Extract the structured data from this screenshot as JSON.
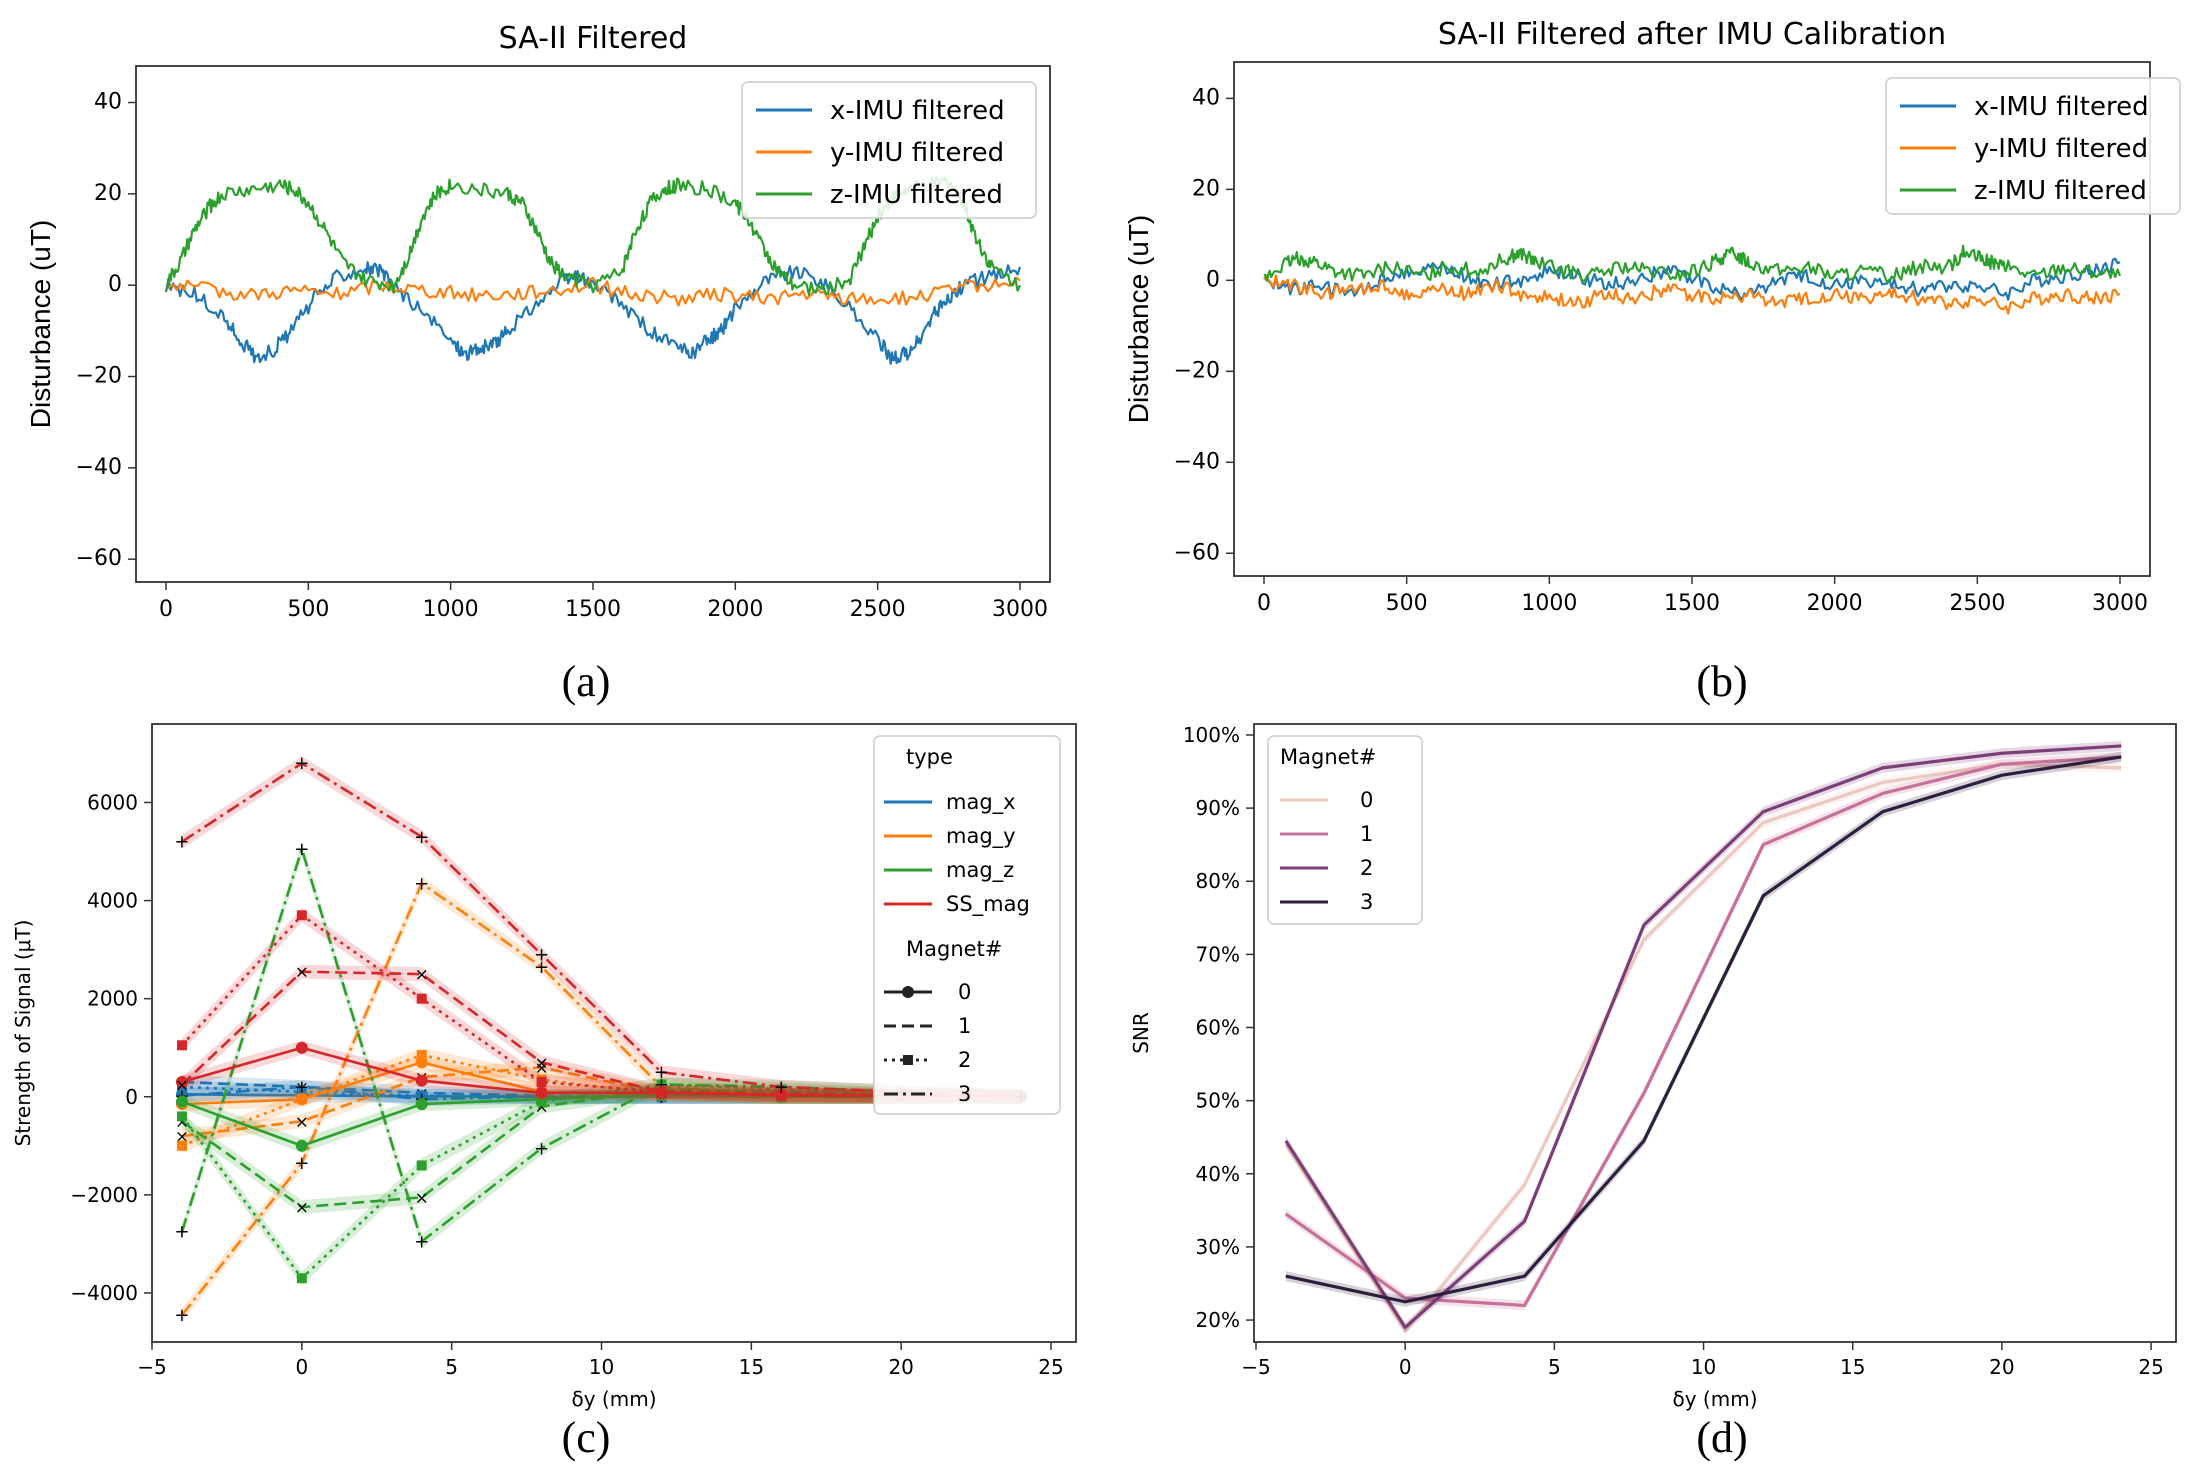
{
  "panels": {
    "a": {
      "caption": "(a)",
      "chart_data": {
        "type": "line",
        "title": "SA-II Filtered",
        "xlabel": "",
        "ylabel": "Disturbance (uT)",
        "xlim": [
          0,
          3000
        ],
        "ylim": [
          -65,
          48
        ],
        "xticks": [
          0,
          500,
          1000,
          1500,
          2000,
          2500,
          3000
        ],
        "yticks": [
          40,
          20,
          0,
          -20,
          -40,
          -60
        ],
        "legend": [
          "x-IMU filtered",
          "y-IMU filtered",
          "z-IMU filtered"
        ],
        "series": [
          {
            "name": "x-IMU filtered",
            "color": "#1f77b4",
            "x": [
              0,
              100,
              200,
              260,
              320,
              380,
              440,
              520,
              600,
              700,
              750,
              800,
              900,
              1000,
              1050,
              1100,
              1150,
              1200,
              1300,
              1400,
              1450,
              1500,
              1600,
              1700,
              1800,
              1850,
              1900,
              1950,
              2000,
              2100,
              2200,
              2300,
              2400,
              2500,
              2550,
              2600,
              2650,
              2700,
              2750,
              2800,
              2900,
              3000
            ],
            "values": [
              0,
              -2,
              -7,
              -12,
              -16,
              -14,
              -10,
              -3,
              2,
              4,
              3,
              0,
              -6,
              -12,
              -15,
              -14,
              -13,
              -10,
              -4,
              1,
              2,
              0,
              -4,
              -10,
              -14,
              -15,
              -12,
              -10,
              -5,
              1,
              3,
              1,
              -5,
              -12,
              -16,
              -15,
              -12,
              -6,
              -3,
              0,
              2,
              4
            ]
          },
          {
            "name": "y-IMU filtered",
            "color": "#ff7f0e",
            "x": [
              0,
              150,
              300,
              450,
              600,
              750,
              900,
              1050,
              1200,
              1350,
              1500,
              1650,
              1800,
              1950,
              2100,
              2250,
              2400,
              2550,
              2700,
              2850,
              3000
            ],
            "values": [
              0,
              -1,
              -2,
              -1,
              -2,
              0,
              -1,
              -2,
              -2,
              -1,
              0,
              -2,
              -3,
              -2,
              -3,
              -2,
              -3,
              -3,
              -2,
              0,
              1
            ]
          },
          {
            "name": "z-IMU filtered",
            "color": "#2ca02c",
            "x": [
              0,
              50,
              100,
              150,
              200,
              300,
              400,
              450,
              500,
              560,
              620,
              700,
              800,
              850,
              900,
              950,
              1000,
              1100,
              1200,
              1250,
              1300,
              1350,
              1400,
              1500,
              1600,
              1650,
              1700,
              1750,
              1800,
              1900,
              2000,
              2050,
              2100,
              2150,
              2200,
              2300,
              2400,
              2450,
              2500,
              2550,
              2600,
              2700,
              2750,
              2800,
              2850,
              2900,
              3000
            ],
            "values": [
              0,
              5,
              12,
              17,
              20,
              21,
              22,
              21,
              18,
              12,
              5,
              1,
              0,
              6,
              15,
              20,
              22,
              21,
              20,
              18,
              12,
              5,
              2,
              0,
              3,
              12,
              18,
              21,
              22,
              21,
              18,
              14,
              8,
              3,
              0,
              -1,
              1,
              8,
              15,
              19,
              21,
              22,
              23,
              18,
              10,
              4,
              0
            ]
          }
        ]
      }
    },
    "b": {
      "caption": "(b)",
      "chart_data": {
        "type": "line",
        "title": "SA-II Filtered after IMU Calibration",
        "xlabel": "",
        "ylabel": "Disturbance (uT)",
        "xlim": [
          0,
          3000
        ],
        "ylim": [
          -65,
          48
        ],
        "xticks": [
          0,
          500,
          1000,
          1500,
          2000,
          2500,
          3000
        ],
        "yticks": [
          40,
          20,
          0,
          -20,
          -40,
          -60
        ],
        "legend": [
          "x-IMU filtered",
          "y-IMU filtered",
          "z-IMU filtered"
        ],
        "series": [
          {
            "name": "x-IMU filtered",
            "color": "#1f77b4",
            "x": [
              0,
              100,
              200,
              300,
              400,
              500,
              600,
              700,
              800,
              900,
              1000,
              1100,
              1200,
              1300,
              1400,
              1500,
              1600,
              1700,
              1800,
              1900,
              2000,
              2100,
              2200,
              2300,
              2400,
              2500,
              2600,
              2700,
              2800,
              2900,
              3000
            ],
            "values": [
              0,
              -2,
              -1,
              -3,
              0,
              2,
              3,
              1,
              -1,
              0,
              2,
              1,
              -1,
              0,
              2,
              1,
              -2,
              -3,
              0,
              1,
              -1,
              0,
              -1,
              -2,
              -1,
              -1,
              -3,
              0,
              1,
              2,
              4
            ]
          },
          {
            "name": "y-IMU filtered",
            "color": "#ff7f0e",
            "x": [
              0,
              100,
              200,
              300,
              400,
              500,
              600,
              700,
              800,
              900,
              1000,
              1100,
              1200,
              1300,
              1400,
              1500,
              1600,
              1700,
              1800,
              1900,
              2000,
              2100,
              2200,
              2300,
              2400,
              2500,
              2600,
              2700,
              2800,
              2900,
              3000
            ],
            "values": [
              0,
              -1,
              -3,
              -2,
              -1,
              -3,
              -2,
              -3,
              -1,
              -3,
              -4,
              -5,
              -3,
              -4,
              -2,
              -3,
              -4,
              -3,
              -5,
              -4,
              -3,
              -4,
              -3,
              -4,
              -5,
              -4,
              -6,
              -4,
              -3,
              -4,
              -3
            ]
          },
          {
            "name": "z-IMU filtered",
            "color": "#2ca02c",
            "x": [
              0,
              60,
              120,
              180,
              250,
              350,
              450,
              550,
              650,
              750,
              850,
              900,
              950,
              1050,
              1150,
              1250,
              1350,
              1450,
              1550,
              1600,
              1650,
              1700,
              1800,
              1900,
              2000,
              2100,
              2200,
              2300,
              2400,
              2450,
              2500,
              2550,
              2600,
              2700,
              2800,
              2900,
              3000
            ],
            "values": [
              0,
              3,
              5,
              4,
              2,
              1,
              3,
              1,
              3,
              2,
              5,
              6,
              4,
              2,
              1,
              3,
              2,
              1,
              3,
              5,
              6,
              4,
              2,
              3,
              1,
              2,
              1,
              3,
              3,
              6,
              5,
              4,
              3,
              1,
              3,
              2,
              1
            ]
          }
        ]
      }
    },
    "c": {
      "caption": "(c)",
      "chart_data": {
        "type": "line",
        "title": "",
        "xlabel": "δy (mm)",
        "ylabel": "Strength of Signal (μT)",
        "xlim": [
          -5,
          25.5
        ],
        "ylim": [
          -5000,
          7600
        ],
        "xticks": [
          -5,
          0,
          5,
          10,
          15,
          20,
          25
        ],
        "yticks": [
          6000,
          4000,
          2000,
          0,
          -2000,
          -4000
        ],
        "x": [
          -4,
          0,
          4,
          8,
          12,
          16,
          20,
          24
        ],
        "legend": {
          "type_title": "type",
          "types": [
            "mag_x",
            "mag_y",
            "mag_z",
            "SS_mag"
          ],
          "magnet_title": "Magnet#",
          "magnets": [
            "0",
            "1",
            "2",
            "3"
          ]
        },
        "series": [
          {
            "name": "mag_x 0",
            "type": "mag_x",
            "magnet": "0",
            "values": [
              50,
              30,
              10,
              0,
              0,
              0,
              0,
              0
            ]
          },
          {
            "name": "mag_x 1",
            "type": "mag_x",
            "magnet": "1",
            "values": [
              300,
              200,
              80,
              20,
              0,
              0,
              0,
              0
            ]
          },
          {
            "name": "mag_x 2",
            "type": "mag_x",
            "magnet": "2",
            "values": [
              200,
              100,
              20,
              0,
              0,
              0,
              0,
              0
            ]
          },
          {
            "name": "mag_x 3",
            "type": "mag_x",
            "magnet": "3",
            "values": [
              20,
              200,
              -50,
              0,
              0,
              0,
              0,
              0
            ]
          },
          {
            "name": "mag_y 0",
            "type": "mag_y",
            "magnet": "0",
            "values": [
              -150,
              -50,
              700,
              100,
              50,
              0,
              0,
              0
            ]
          },
          {
            "name": "mag_y 1",
            "type": "mag_y",
            "magnet": "1",
            "values": [
              -800,
              -500,
              400,
              600,
              80,
              0,
              0,
              0
            ]
          },
          {
            "name": "mag_y 2",
            "type": "mag_y",
            "magnet": "2",
            "values": [
              -1000,
              -50,
              850,
              350,
              50,
              0,
              0,
              0
            ]
          },
          {
            "name": "mag_y 3",
            "type": "mag_y",
            "magnet": "3",
            "values": [
              -4450,
              -1350,
              4350,
              2650,
              200,
              50,
              0,
              0
            ]
          },
          {
            "name": "mag_z 0",
            "type": "mag_z",
            "magnet": "0",
            "values": [
              -100,
              -1000,
              -150,
              -50,
              50,
              0,
              0,
              0
            ]
          },
          {
            "name": "mag_z 1",
            "type": "mag_z",
            "magnet": "1",
            "values": [
              -500,
              -2250,
              -2050,
              -200,
              150,
              100,
              50,
              0
            ]
          },
          {
            "name": "mag_z 2",
            "type": "mag_z",
            "magnet": "2",
            "values": [
              -400,
              -3700,
              -1400,
              -100,
              250,
              150,
              50,
              0
            ]
          },
          {
            "name": "mag_z 3",
            "type": "mag_z",
            "magnet": "3",
            "values": [
              -2750,
              5050,
              -2950,
              -1050,
              250,
              200,
              100,
              0
            ]
          },
          {
            "name": "SS_mag 0",
            "type": "SS_mag",
            "magnet": "0",
            "values": [
              300,
              1000,
              330,
              80,
              80,
              30,
              20,
              10
            ]
          },
          {
            "name": "SS_mag 1",
            "type": "SS_mag",
            "magnet": "1",
            "values": [
              250,
              2550,
              2500,
              700,
              100,
              50,
              30,
              10
            ]
          },
          {
            "name": "SS_mag 2",
            "type": "SS_mag",
            "magnet": "2",
            "values": [
              1050,
              3700,
              2000,
              300,
              100,
              40,
              20,
              10
            ]
          },
          {
            "name": "SS_mag 3",
            "type": "SS_mag",
            "magnet": "3",
            "values": [
              5200,
              6800,
              5300,
              2900,
              500,
              200,
              100,
              10
            ]
          }
        ],
        "colors": {
          "mag_x": "#1f77b4",
          "mag_y": "#ff7f0e",
          "mag_z": "#2ca02c",
          "SS_mag": "#d62728"
        }
      }
    },
    "d": {
      "caption": "(d)",
      "chart_data": {
        "type": "line",
        "title": "",
        "xlabel": "δy (mm)",
        "ylabel": "SNR",
        "xlim": [
          -5,
          25.5
        ],
        "ylim": [
          17,
          101.5
        ],
        "xticks": [
          -5,
          0,
          5,
          10,
          15,
          20,
          25
        ],
        "yticks": [
          "100%",
          "90%",
          "80%",
          "70%",
          "60%",
          "50%",
          "40%",
          "30%",
          "20%"
        ],
        "ytick_values": [
          100,
          90,
          80,
          70,
          60,
          50,
          40,
          30,
          20
        ],
        "x": [
          -4,
          0,
          4,
          8,
          12,
          16,
          20,
          24
        ],
        "legend_title": "Magnet#",
        "series": [
          {
            "name": "0",
            "color": "#ecc9c0",
            "values": [
              44,
              18.5,
              38.5,
              72,
              88,
              93.5,
              96,
              95.5
            ]
          },
          {
            "name": "1",
            "color": "#c6719a",
            "values": [
              34.5,
              23,
              22,
              51,
              85,
              92,
              96,
              97
            ]
          },
          {
            "name": "2",
            "color": "#7c3e76",
            "values": [
              44.5,
              19,
              33.5,
              74,
              89.5,
              95.5,
              97.5,
              98.5
            ]
          },
          {
            "name": "3",
            "color": "#2d1e3e",
            "values": [
              26,
              22.5,
              26,
              44.5,
              78,
              89.5,
              94.5,
              97
            ]
          }
        ]
      }
    }
  }
}
